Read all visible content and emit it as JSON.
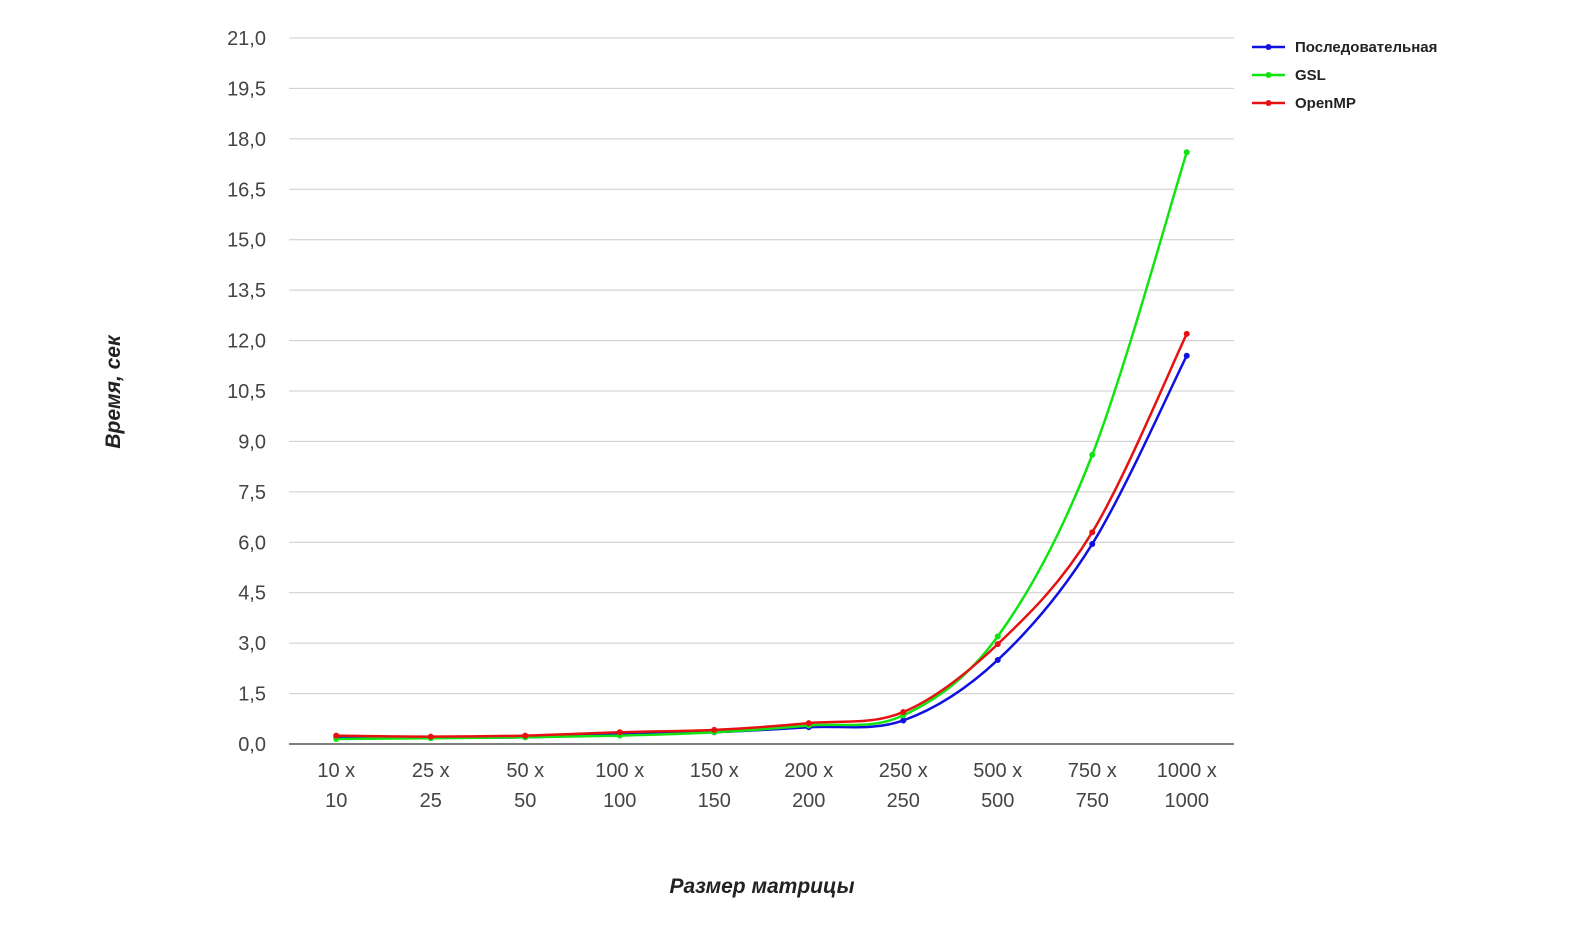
{
  "chart_data": {
    "type": "line",
    "xlabel": "Размер матрицы",
    "ylabel": "Время, сек",
    "categories": [
      [
        "10 x",
        "10"
      ],
      [
        "25 x",
        "25"
      ],
      [
        "50 x",
        "50"
      ],
      [
        "100 x",
        "100"
      ],
      [
        "150 x",
        "150"
      ],
      [
        "200 x",
        "200"
      ],
      [
        "250 x",
        "250"
      ],
      [
        "500 x",
        "500"
      ],
      [
        "750 x",
        "750"
      ],
      [
        "1000 x",
        "1000"
      ]
    ],
    "ylim": [
      0,
      21
    ],
    "yticks": [
      "0,0",
      "1,5",
      "3,0",
      "4,5",
      "6,0",
      "7,5",
      "9,0",
      "10,5",
      "12,0",
      "13,5",
      "15,0",
      "16,5",
      "18,0",
      "19,5",
      "21,0"
    ],
    "grid": true,
    "legend_position": "top-right",
    "series": [
      {
        "name": "Последовательная",
        "color": "#1010e0",
        "values": [
          0.2,
          0.2,
          0.2,
          0.3,
          0.35,
          0.5,
          0.7,
          2.5,
          5.95,
          11.55
        ]
      },
      {
        "name": "GSL",
        "color": "#12e312",
        "values": [
          0.15,
          0.17,
          0.2,
          0.25,
          0.35,
          0.55,
          0.85,
          3.2,
          8.6,
          17.6
        ]
      },
      {
        "name": "OpenMP",
        "color": "#e61212",
        "values": [
          0.25,
          0.22,
          0.25,
          0.35,
          0.42,
          0.62,
          0.95,
          2.97,
          6.3,
          12.2
        ]
      }
    ]
  }
}
